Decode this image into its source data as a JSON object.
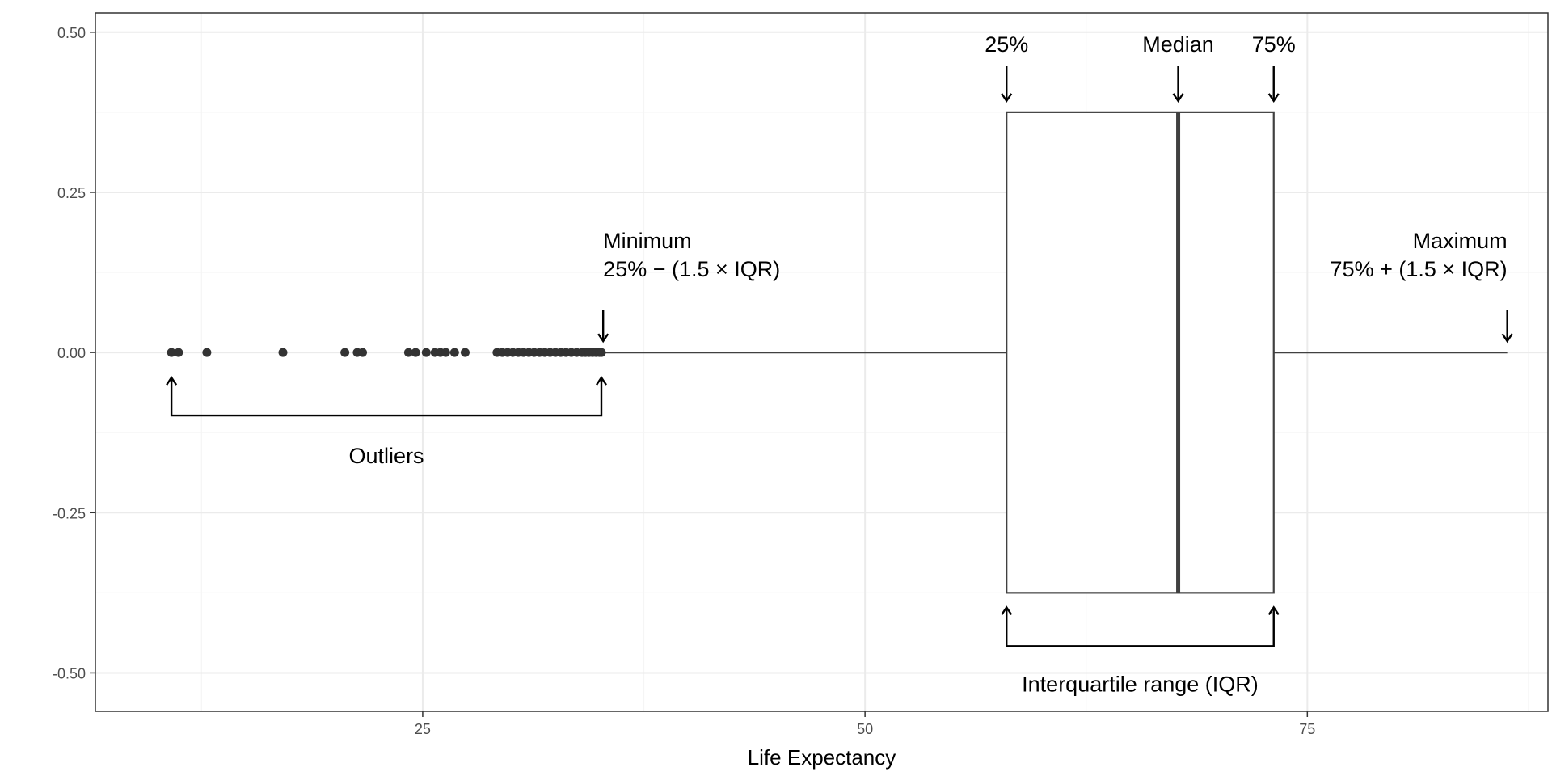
{
  "chart_data": {
    "type": "boxplot",
    "title": "",
    "xlabel": "Life Expectancy",
    "ylabel": "",
    "xlim": [
      6.5,
      88.6
    ],
    "ylim": [
      -0.56,
      0.53
    ],
    "x_ticks": [
      25,
      50,
      75
    ],
    "x_tick_labels": [
      "25",
      "50",
      "75"
    ],
    "y_ticks": [
      0.5,
      0.25,
      0.0,
      -0.25,
      -0.5
    ],
    "y_tick_labels": [
      "0.50",
      "0.25",
      "0.00",
      "-0.25",
      "-0.50"
    ],
    "grid": true,
    "box": {
      "q1": 58.0,
      "median": 67.7,
      "q3": 73.1,
      "whisker_low": 35.2,
      "whisker_high": 86.3,
      "half_width": 0.375
    },
    "outliers": [
      10.8,
      11.2,
      12.8,
      17.1,
      20.6,
      21.3,
      21.6,
      24.2,
      24.6,
      25.2,
      25.7,
      26.0,
      26.3,
      26.8,
      27.4,
      29.2,
      29.5,
      29.8,
      30.1,
      30.4,
      30.7,
      31.0,
      31.3,
      31.6,
      31.9,
      32.2,
      32.5,
      32.8,
      33.1,
      33.4,
      33.7,
      34.0,
      34.2,
      34.4,
      34.6,
      34.8,
      35.0,
      35.1
    ],
    "annotations": {
      "q1_label": "25%",
      "median_label": "Median",
      "q3_label": "75%",
      "minimum_label_line1": "Minimum",
      "minimum_label_line2": "25% − (1.5 × IQR)",
      "maximum_label_line1": "Maximum",
      "maximum_label_line2": "75% + (1.5 × IQR)",
      "outliers_label": "Outliers",
      "iqr_label": "Interquartile range (IQR)"
    }
  },
  "colors": {
    "panel_border": "#333333",
    "grid_major": "#ebebeb",
    "grid_minor": "#f5f5f5",
    "box_stroke": "#404040",
    "points": "#333333",
    "annotation": "#000000"
  }
}
